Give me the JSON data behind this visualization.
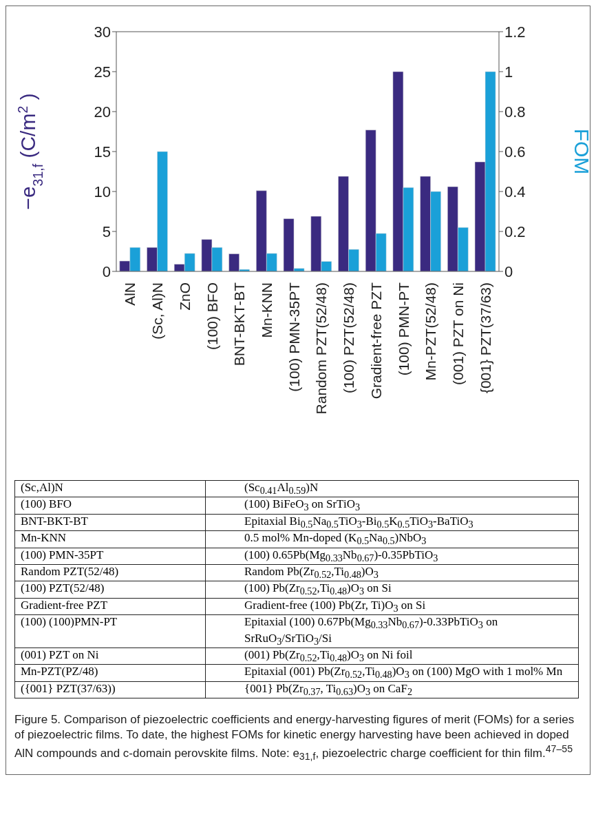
{
  "chart_data": {
    "type": "bar",
    "categories": [
      "AlN",
      "(Sc, Al)N",
      "ZnO",
      "(100) BFO",
      "BNT-BKT-BT",
      "Mn-KNN",
      "(100) PMN-35PT",
      "Random PZT(52/48)",
      "(100) PZT(52/48)",
      "Gradient-free PZT",
      "(100) PMN-PT",
      "Mn-PZT(52/48)",
      "(001) PZT on Ni",
      "{001} PZT(37/63)"
    ],
    "series": [
      {
        "color": "#3a2a80",
        "values": [
          1.3,
          3.0,
          0.9,
          4.0,
          2.2,
          10.1,
          6.6,
          6.9,
          11.9,
          17.7,
          25,
          11.9,
          10.6,
          13.7
        ]
      },
      {
        "color": "#1aa0d8",
        "axis": "y2",
        "values": [
          0.12,
          0.6,
          0.09,
          0.12,
          0.01,
          0.09,
          0.015,
          0.05,
          0.11,
          0.19,
          0.42,
          0.4,
          0.22,
          1.0
        ]
      }
    ],
    "ylabel": "−e$_{31,f}$ (C/m$^{2}$)",
    "y2label": "FOM",
    "ylim": [
      0,
      30
    ],
    "yticks": [
      0,
      5,
      10,
      15,
      20,
      25,
      30
    ],
    "y2lim": [
      0,
      1.2
    ],
    "y2ticks": [
      0,
      0.2,
      0.4,
      0.6,
      0.8,
      1,
      1.2
    ],
    "annotations": [
      "(Sc,Al)N",
      "(Sc$_{0.41}$Al$_{0.59}$)N",
      "(100) BFO",
      "(100) BiFeO$_{3}$ on SrTiO$_{3}$",
      "BNT-BKT-BT",
      "Epitaxial Bi$_{0.5}$Na$_{0.5}$TiO$_{3}$-Bi$_{0.5}$K$_{0.5}$TiO$_{3}$-BaTiO$_{3}$",
      "Mn-KNN",
      "0.5 mol% Mn-doped (K$_{0.5}$Na$_{0.5}$)NbO$_{3}$",
      "(100) PMN-35PT",
      "(100) 0.65Pb(Mg$_{0.33}$Nb$_{0.67}$)-0.35PbTiO$_{3}$",
      "Random PZT(52/48)",
      "Random Pb(Zr$_{0.52}$,Ti$_{0.48}$)O$_{3}$",
      "(100) PZT(52/48)",
      "(100) Pb(Zr$_{0.52}$,Ti$_{0.48}$)O$_{3}$ on Si",
      "Gradient-free PZT",
      "Gradient-free (100) Pb(Zr, Ti)O$_{3}$ on Si",
      "(100) (100)PMN-PT",
      "Epitaxial (100) 0.67Pb(Mg$_{0.33}$Nb$_{0.67}$)-0.33PbTiO$_{3}$ on SrRuO$_{3}$/SrTiO$_{3}$/Si",
      "(001) PZT on Ni",
      "(001) Pb(Zr$_{0.52}$,Ti$_{0.48}$)O$_{3}$ on Ni foil",
      "Mn-PZT(PZ/48)",
      "Epitaxial (001) Pb(Zr$_{0.52}$,Ti$_{0.48}$)O$_{3}$ on (100) MgO with 1 mol% Mn",
      "({001} PZT(37/63))",
      "{001} Pb(Zr$_{0.37}$, Ti$_{0.63}$)O$_{3}$ on CaF$_{2}$",
      "Figure 5.  Comparison of piezoelectric coefficients and energy-harvesting figures of merit (FOMs) for a series of piezoelectric films. To date, the highest FOMs for kinetic energy harvesting have been achieved in doped AlN compounds and c-domain perovskite films. Note: e$_{31,f}$, piezoelectric charge coefficient for thin film.$^{47–55}$"
    ]
  }
}
